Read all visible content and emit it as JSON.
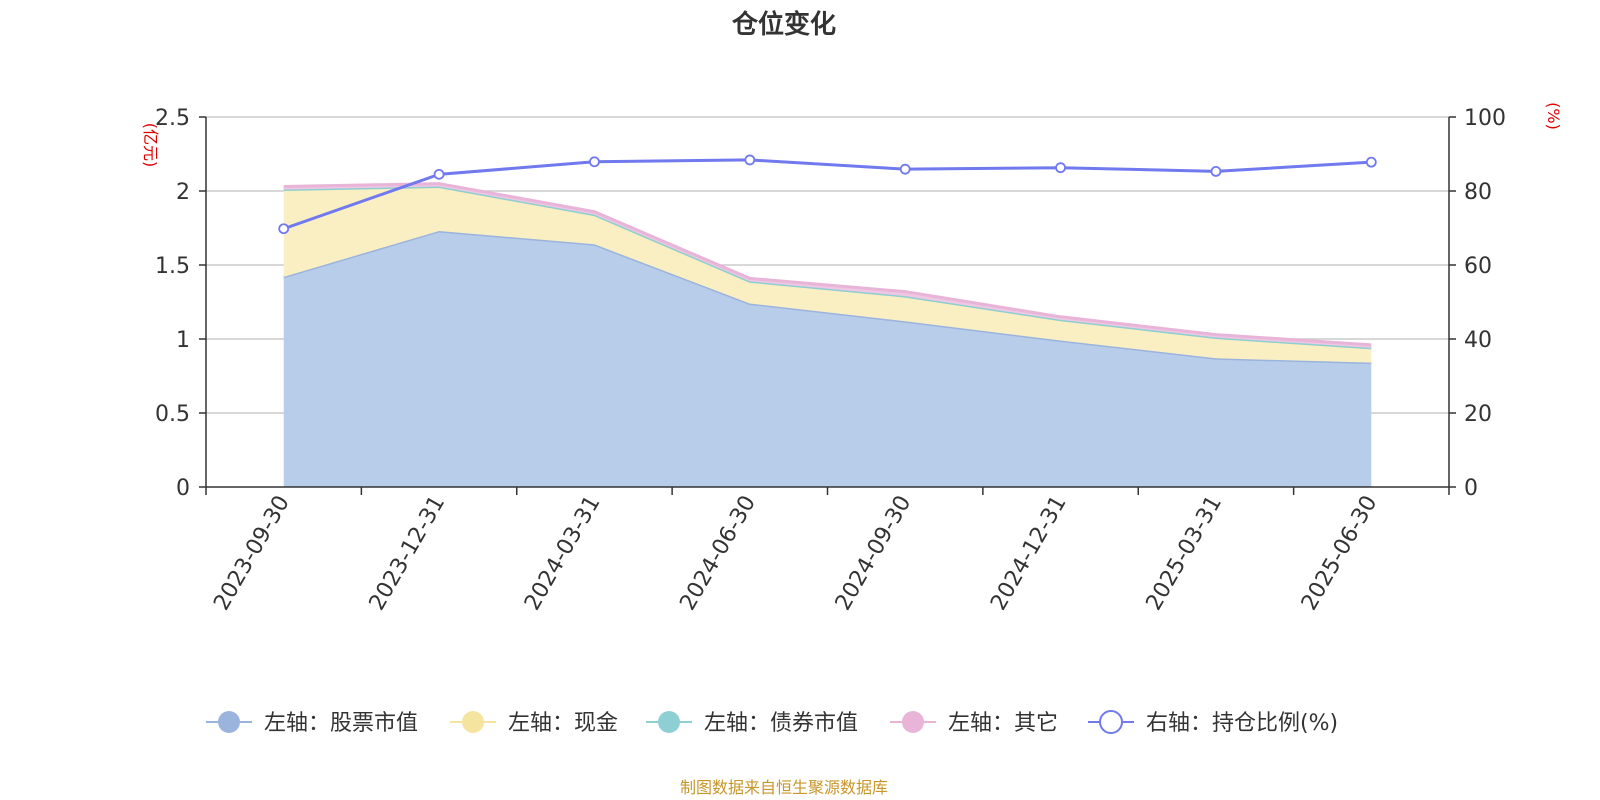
{
  "chart_data": {
    "type": "area",
    "title": "仓位变化",
    "left_unit": "(亿元)",
    "right_unit": "(%)",
    "categories": [
      "2023-09-30",
      "2023-12-31",
      "2024-03-31",
      "2024-06-30",
      "2024-09-30",
      "2024-12-31",
      "2025-03-31",
      "2025-06-30"
    ],
    "y_left": {
      "min": 0,
      "max": 2.5,
      "ticks": [
        "0",
        "0.5",
        "1",
        "1.5",
        "2",
        "2.5"
      ]
    },
    "y_right": {
      "min": 0,
      "max": 100,
      "ticks": [
        "0",
        "20",
        "40",
        "60",
        "80",
        "100"
      ]
    },
    "stacked_series": [
      {
        "name": "左轴：股票市值",
        "axis": "left",
        "color": "#9ab4de",
        "fill": "#b8cdea",
        "values": [
          1.42,
          1.73,
          1.64,
          1.24,
          1.12,
          0.99,
          0.87,
          0.84
        ]
      },
      {
        "name": "左轴：现金",
        "axis": "left",
        "color": "#f5e4a0",
        "fill": "#faefc3",
        "values": [
          0.59,
          0.3,
          0.2,
          0.15,
          0.17,
          0.14,
          0.14,
          0.1
        ]
      },
      {
        "name": "左轴：债券市值",
        "axis": "left",
        "color": "#8ecfd3",
        "fill": "#a9dbde",
        "values": [
          0,
          0,
          0,
          0,
          0,
          0,
          0,
          0
        ]
      },
      {
        "name": "左轴：其它",
        "axis": "left",
        "color": "#e8b4d8",
        "fill": "#efc7e3",
        "values": [
          0.02,
          0.02,
          0.02,
          0.02,
          0.03,
          0.02,
          0.02,
          0.02
        ]
      }
    ],
    "line_series": {
      "name": "右轴：持仓比例(%)",
      "axis": "right",
      "color": "#7079ee",
      "values": [
        69.8,
        84.5,
        87.9,
        88.4,
        85.9,
        86.3,
        85.3,
        87.8
      ]
    },
    "grid": true,
    "legend_position": "bottom"
  },
  "source_note": "制图数据来自恒生聚源数据库"
}
